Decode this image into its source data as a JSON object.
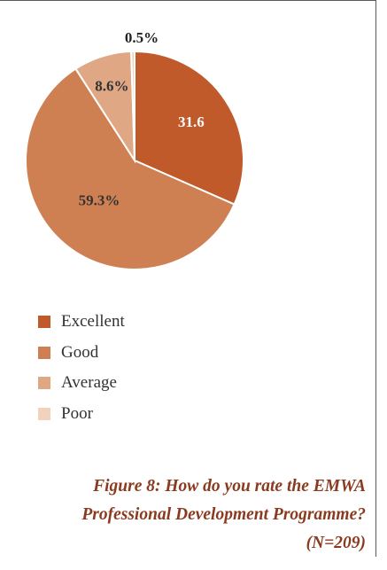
{
  "chart_data": {
    "type": "pie",
    "slices": [
      {
        "name": "Excellent",
        "value": 31.6,
        "label": "31.6",
        "color": "#c05a2a"
      },
      {
        "name": "Good",
        "value": 59.3,
        "label": "59.3%",
        "color": "#cf8052"
      },
      {
        "name": "Average",
        "value": 8.6,
        "label": "8.6%",
        "color": "#dfa784"
      },
      {
        "name": "Poor",
        "value": 0.5,
        "label": "0.5%",
        "color": "#f0d2bd"
      }
    ],
    "legend": {
      "placement": "bottom-left",
      "items": [
        "Excellent",
        "Good",
        "Average",
        "Poor"
      ]
    }
  },
  "caption": {
    "line1": "Figure 8: How do you rate the EMWA",
    "line2": "Professional Development Programme?",
    "line3": "(N=209)"
  }
}
